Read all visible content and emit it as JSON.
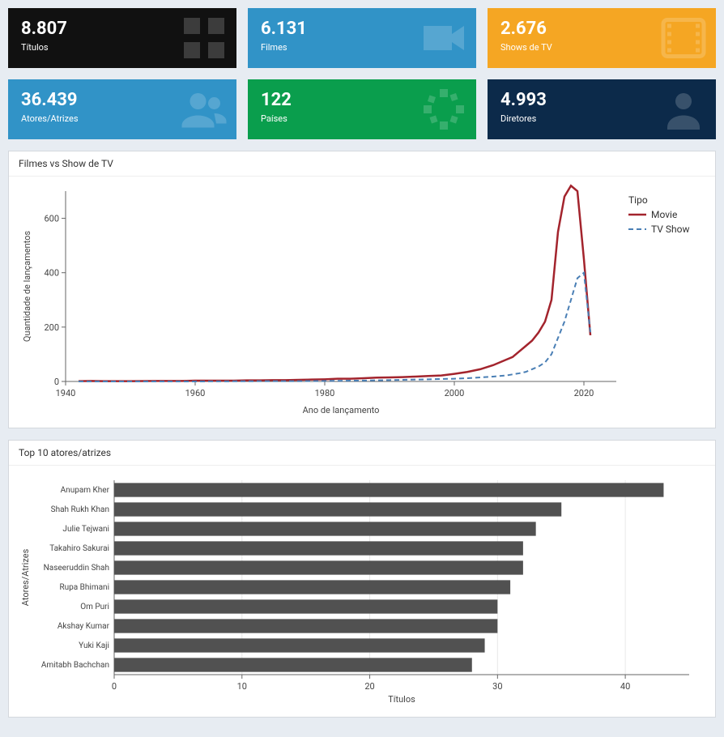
{
  "cards": [
    {
      "value": "8.807",
      "label": "Títulos",
      "bg": "#111111",
      "fg": "#ffffff",
      "icon": "grid"
    },
    {
      "value": "6.131",
      "label": "Filmes",
      "bg": "#3193c7",
      "fg": "#ffffff",
      "icon": "video"
    },
    {
      "value": "2.676",
      "label": "Shows de TV",
      "bg": "#f5a623",
      "fg": "#ffffff",
      "icon": "film"
    },
    {
      "value": "36.439",
      "label": "Atores/Atrizes",
      "bg": "#3193c7",
      "fg": "#ffffff",
      "icon": "people"
    },
    {
      "value": "122",
      "label": "Países",
      "bg": "#0a9e4d",
      "fg": "#ffffff",
      "icon": "globe"
    },
    {
      "value": "4.993",
      "label": "Diretores",
      "bg": "#0c2a4a",
      "fg": "#ffffff",
      "icon": "person"
    }
  ],
  "line_chart": {
    "title": "Filmes vs Show de TV",
    "x_label": "Ano de lançamento",
    "y_label": "Quantidade de lançamentos",
    "legend_title": "Tipo",
    "xlim": [
      1940,
      2025
    ],
    "ylim": [
      0,
      700
    ],
    "xticks": [
      1940,
      1960,
      1980,
      2000,
      2020
    ],
    "yticks": [
      0,
      200,
      400,
      600
    ],
    "plot_bg": "#ffffff",
    "grid_color": "#e8e8e8",
    "axis_color": "#666666",
    "series": [
      {
        "name": "Movie",
        "color": "#a3242d",
        "dash": "solid",
        "width": 2.5,
        "data": [
          [
            1942,
            1
          ],
          [
            1944,
            2
          ],
          [
            1946,
            1
          ],
          [
            1948,
            1
          ],
          [
            1950,
            1
          ],
          [
            1954,
            2
          ],
          [
            1956,
            2
          ],
          [
            1958,
            2
          ],
          [
            1960,
            3
          ],
          [
            1962,
            3
          ],
          [
            1964,
            3
          ],
          [
            1966,
            3
          ],
          [
            1968,
            4
          ],
          [
            1970,
            4
          ],
          [
            1972,
            5
          ],
          [
            1974,
            5
          ],
          [
            1976,
            6
          ],
          [
            1978,
            7
          ],
          [
            1980,
            8
          ],
          [
            1982,
            10
          ],
          [
            1984,
            10
          ],
          [
            1986,
            12
          ],
          [
            1988,
            14
          ],
          [
            1990,
            15
          ],
          [
            1992,
            16
          ],
          [
            1994,
            18
          ],
          [
            1996,
            20
          ],
          [
            1998,
            22
          ],
          [
            2000,
            28
          ],
          [
            2002,
            35
          ],
          [
            2004,
            45
          ],
          [
            2006,
            60
          ],
          [
            2008,
            80
          ],
          [
            2009,
            90
          ],
          [
            2010,
            110
          ],
          [
            2011,
            130
          ],
          [
            2012,
            150
          ],
          [
            2013,
            180
          ],
          [
            2014,
            220
          ],
          [
            2015,
            300
          ],
          [
            2016,
            550
          ],
          [
            2017,
            680
          ],
          [
            2018,
            720
          ],
          [
            2019,
            700
          ],
          [
            2020,
            450
          ],
          [
            2021,
            170
          ]
        ]
      },
      {
        "name": "TV Show",
        "color": "#4a7fb5",
        "dash": "6,4",
        "width": 2,
        "data": [
          [
            1942,
            0
          ],
          [
            1960,
            0
          ],
          [
            1970,
            1
          ],
          [
            1975,
            1
          ],
          [
            1980,
            2
          ],
          [
            1985,
            3
          ],
          [
            1988,
            4
          ],
          [
            1990,
            5
          ],
          [
            1992,
            6
          ],
          [
            1994,
            7
          ],
          [
            1996,
            8
          ],
          [
            1998,
            9
          ],
          [
            2000,
            10
          ],
          [
            2002,
            12
          ],
          [
            2004,
            15
          ],
          [
            2006,
            18
          ],
          [
            2008,
            22
          ],
          [
            2010,
            30
          ],
          [
            2011,
            35
          ],
          [
            2012,
            45
          ],
          [
            2013,
            55
          ],
          [
            2014,
            70
          ],
          [
            2015,
            100
          ],
          [
            2016,
            160
          ],
          [
            2017,
            220
          ],
          [
            2018,
            300
          ],
          [
            2019,
            380
          ],
          [
            2020,
            400
          ],
          [
            2021,
            180
          ]
        ]
      }
    ]
  },
  "bar_chart": {
    "title": "Top 10 atores/atrizes",
    "x_label": "Títulos",
    "y_label": "Atores/Atrizes",
    "xlim": [
      0,
      45
    ],
    "xticks": [
      0,
      10,
      20,
      30,
      40
    ],
    "bar_color": "#515151",
    "grid_color": "#e8e8e8",
    "axis_color": "#666666",
    "bars": [
      {
        "name": "Anupam Kher",
        "value": 43
      },
      {
        "name": "Shah Rukh Khan",
        "value": 35
      },
      {
        "name": "Julie Tejwani",
        "value": 33
      },
      {
        "name": "Takahiro Sakurai",
        "value": 32
      },
      {
        "name": "Naseeruddin Shah",
        "value": 32
      },
      {
        "name": "Rupa Bhimani",
        "value": 31
      },
      {
        "name": "Om Puri",
        "value": 30
      },
      {
        "name": "Akshay Kumar",
        "value": 30
      },
      {
        "name": "Yuki Kaji",
        "value": 29
      },
      {
        "name": "Amitabh Bachchan",
        "value": 28
      }
    ]
  }
}
